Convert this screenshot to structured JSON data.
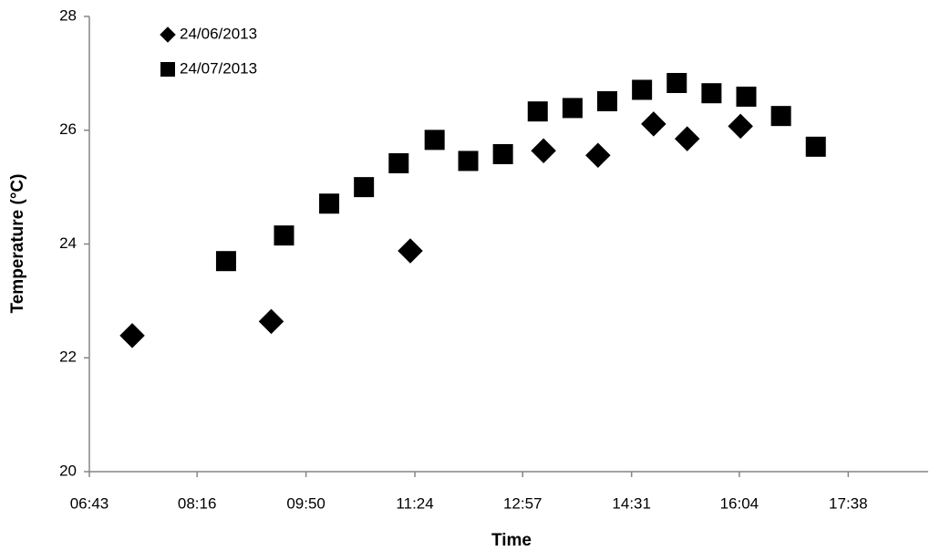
{
  "chart_data": {
    "type": "scatter",
    "x_label": "Time",
    "y_label": "Temperature (°C)",
    "xlim": [
      403,
      1127
    ],
    "xticks": [
      {
        "value": 403,
        "label": "06:43"
      },
      {
        "value": 496,
        "label": "08:16"
      },
      {
        "value": 590,
        "label": "09:50"
      },
      {
        "value": 684,
        "label": "11:24"
      },
      {
        "value": 777,
        "label": "12:57"
      },
      {
        "value": 871,
        "label": "14:31"
      },
      {
        "value": 964,
        "label": "16:04"
      },
      {
        "value": 1058,
        "label": "17:38"
      }
    ],
    "ylim": [
      20,
      28
    ],
    "yticks": [
      20,
      22,
      24,
      26,
      28
    ],
    "grid": false,
    "legend": "top-left",
    "series": [
      {
        "name": "24/06/2013",
        "color": "#000000",
        "marker": "diamond",
        "x": [
          440,
          560,
          680,
          795,
          842,
          890,
          919,
          965
        ],
        "values": [
          22.39,
          22.64,
          23.88,
          25.64,
          25.56,
          26.11,
          25.85,
          26.07
        ]
      },
      {
        "name": "24/07/2013",
        "color": "#000000",
        "marker": "square",
        "x": [
          521,
          571,
          610,
          640,
          670,
          701,
          730,
          760,
          790,
          820,
          850,
          880,
          910,
          940,
          970,
          1000,
          1030
        ],
        "values": [
          23.7,
          24.15,
          24.71,
          25.0,
          25.42,
          25.83,
          25.46,
          25.58,
          26.33,
          26.39,
          26.51,
          26.71,
          26.83,
          26.65,
          26.59,
          26.25,
          25.71
        ]
      }
    ]
  }
}
